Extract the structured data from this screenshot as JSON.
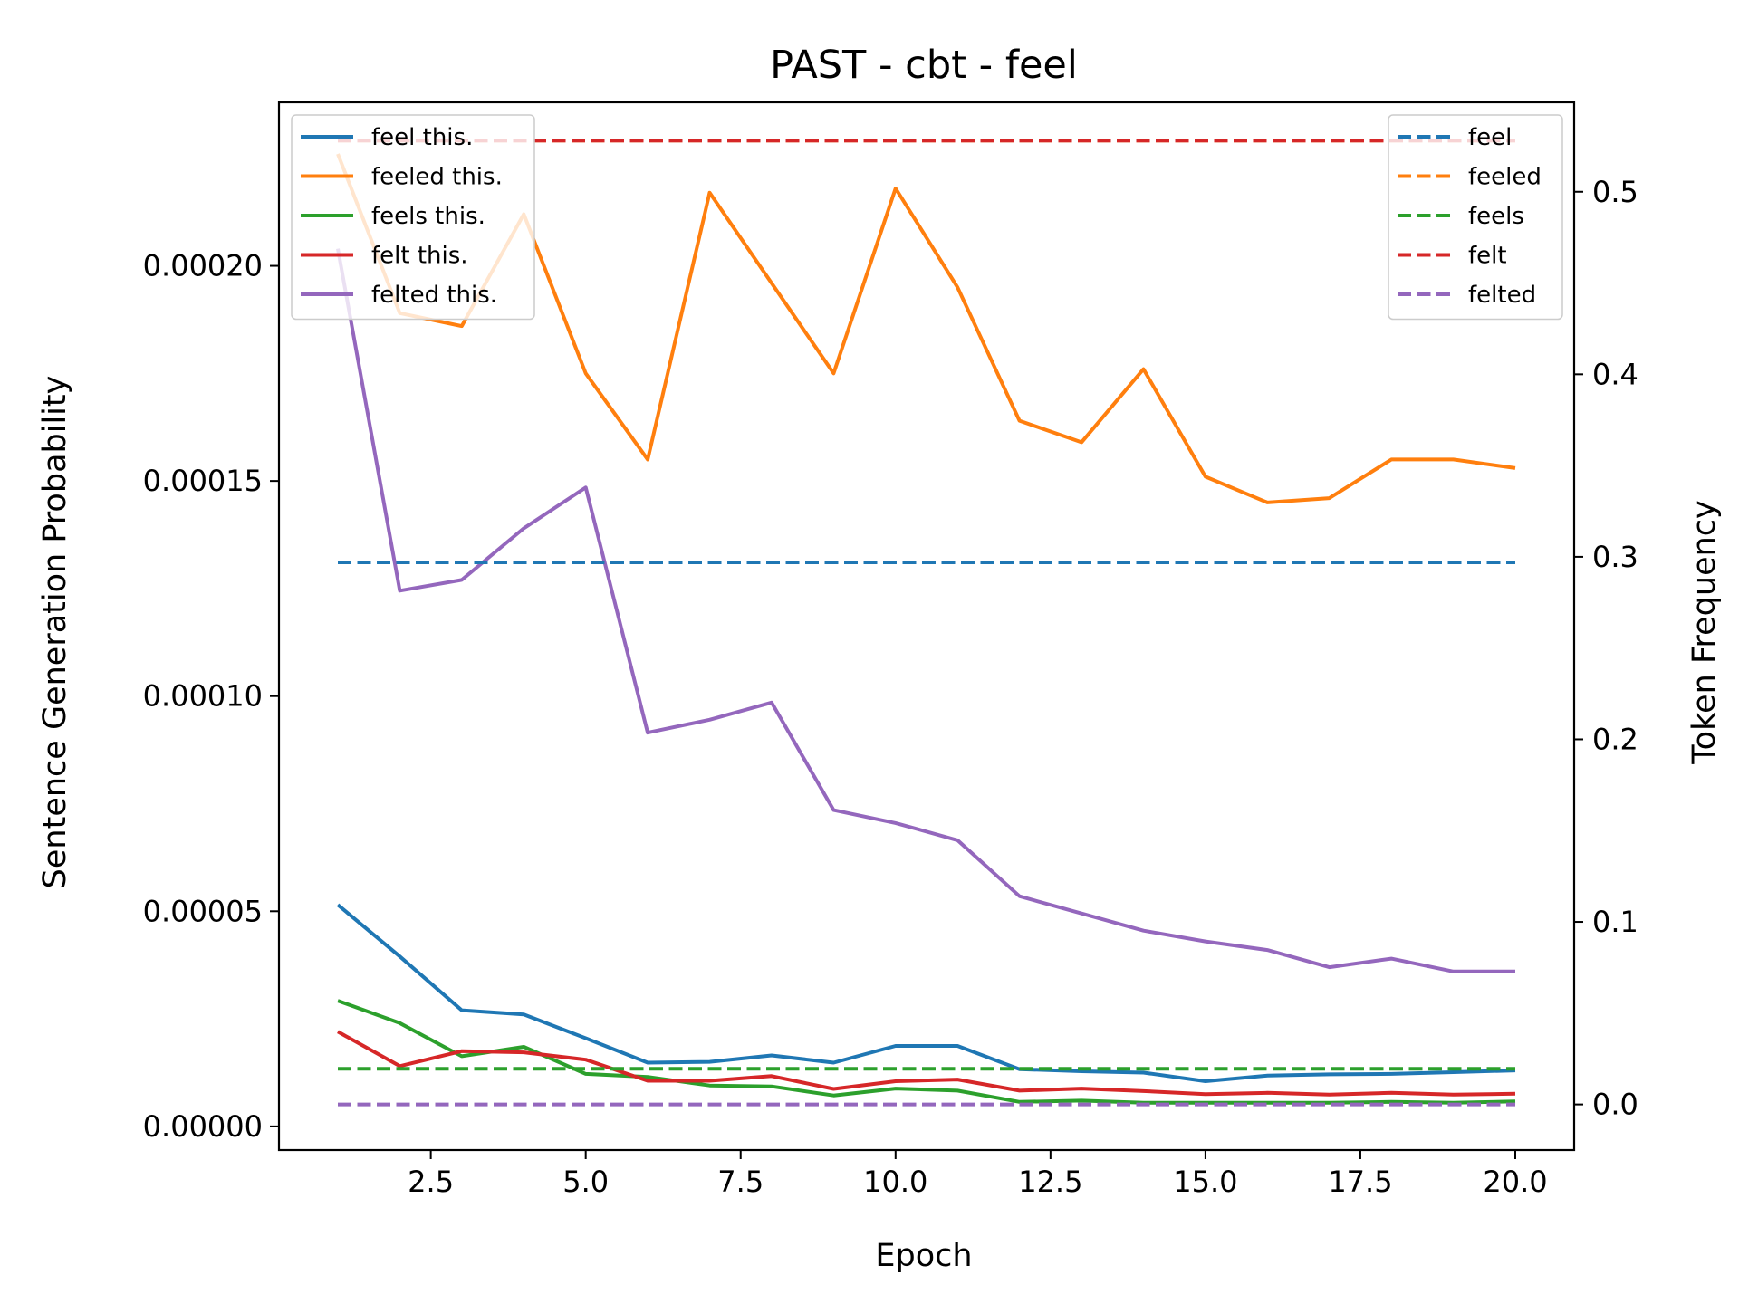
{
  "chart_data": {
    "type": "line",
    "title": "PAST - cbt - feel",
    "xlabel": "Epoch",
    "ylabel": "Sentence Generation Probability",
    "y2label": "Token Frequency",
    "xlim": [
      0.05,
      20.95
    ],
    "ylim": [
      -5.5e-06,
      0.000238
    ],
    "y2lim": [
      -0.025,
      0.549
    ],
    "x_ticks": [
      2.5,
      5.0,
      7.5,
      10.0,
      12.5,
      15.0,
      17.5,
      20.0
    ],
    "x_tick_labels": [
      "2.5",
      "5.0",
      "7.5",
      "10.0",
      "12.5",
      "15.0",
      "17.5",
      "20.0"
    ],
    "y_ticks": [
      0,
      5e-05,
      0.0001,
      0.00015,
      0.0002
    ],
    "y_tick_labels": [
      "0.00000",
      "0.00005",
      "0.00010",
      "0.00015",
      "0.00020"
    ],
    "y2_ticks": [
      0.0,
      0.1,
      0.2,
      0.3,
      0.4,
      0.5
    ],
    "y2_tick_labels": [
      "0.0",
      "0.1",
      "0.2",
      "0.3",
      "0.4",
      "0.5"
    ],
    "x": [
      1,
      2,
      3,
      4,
      5,
      6,
      7,
      8,
      9,
      10,
      11,
      12,
      13,
      14,
      15,
      16,
      17,
      18,
      19,
      20
    ],
    "series": [
      {
        "name": "feel this.",
        "axis": "left",
        "color": "#1f77b4",
        "style": "solid",
        "values": [
          5.15e-05,
          3.95e-05,
          2.7e-05,
          2.6e-05,
          2.05e-05,
          1.48e-05,
          1.5e-05,
          1.65e-05,
          1.48e-05,
          1.87e-05,
          1.87e-05,
          1.33e-05,
          1.28e-05,
          1.25e-05,
          1.05e-05,
          1.18e-05,
          1.21e-05,
          1.22e-05,
          1.26e-05,
          1.3e-05
        ]
      },
      {
        "name": "feeled this.",
        "axis": "left",
        "color": "#ff7f0e",
        "style": "solid",
        "values": [
          0.000226,
          0.000189,
          0.000186,
          0.000212,
          0.000175,
          0.000155,
          0.000217,
          0.000196,
          0.000175,
          0.000218,
          0.000195,
          0.000164,
          0.000159,
          0.000176,
          0.000151,
          0.000145,
          0.000146,
          0.000155,
          0.000155,
          0.000153
        ]
      },
      {
        "name": "feels this.",
        "axis": "left",
        "color": "#2ca02c",
        "style": "solid",
        "values": [
          2.92e-05,
          2.4e-05,
          1.63e-05,
          1.85e-05,
          1.22e-05,
          1.15e-05,
          9.5e-06,
          9.3e-06,
          7.2e-06,
          8.8e-06,
          8.3e-06,
          5.7e-06,
          6e-06,
          5.5e-06,
          5.5e-06,
          5.5e-06,
          5.5e-06,
          5.7e-06,
          5.5e-06,
          5.8e-06
        ]
      },
      {
        "name": "felt this.",
        "axis": "left",
        "color": "#d62728",
        "style": "solid",
        "values": [
          2.2e-05,
          1.4e-05,
          1.75e-05,
          1.72e-05,
          1.55e-05,
          1.06e-05,
          1.06e-05,
          1.17e-05,
          8.7e-06,
          1.05e-05,
          1.09e-05,
          8.3e-06,
          8.8e-06,
          8.2e-06,
          7.5e-06,
          7.8e-06,
          7.4e-06,
          7.8e-06,
          7.4e-06,
          7.6e-06
        ]
      },
      {
        "name": "felted this.",
        "axis": "left",
        "color": "#9467bd",
        "style": "solid",
        "values": [
          0.000204,
          0.0001245,
          0.000127,
          0.000139,
          0.0001485,
          9.15e-05,
          9.45e-05,
          9.85e-05,
          7.35e-05,
          7.05e-05,
          6.65e-05,
          5.35e-05,
          4.95e-05,
          4.55e-05,
          4.3e-05,
          4.1e-05,
          3.7e-05,
          3.9e-05,
          3.6e-05,
          3.6e-05
        ]
      },
      {
        "name": "feel",
        "axis": "right",
        "color": "#1f77b4",
        "style": "dashed",
        "values": [
          0.297,
          0.297,
          0.297,
          0.297,
          0.297,
          0.297,
          0.297,
          0.297,
          0.297,
          0.297,
          0.297,
          0.297,
          0.297,
          0.297,
          0.297,
          0.297,
          0.297,
          0.297,
          0.297,
          0.297
        ]
      },
      {
        "name": "feeled",
        "axis": "right",
        "color": "#ff7f0e",
        "style": "dashed",
        "values": [
          0.528,
          0.528,
          0.528,
          0.528,
          0.528,
          0.528,
          0.528,
          0.528,
          0.528,
          0.528,
          0.528,
          0.528,
          0.528,
          0.528,
          0.528,
          0.528,
          0.528,
          0.528,
          0.528,
          0.528
        ]
      },
      {
        "name": "feels",
        "axis": "right",
        "color": "#2ca02c",
        "style": "dashed",
        "values": [
          0.0195,
          0.0195,
          0.0195,
          0.0195,
          0.0195,
          0.0195,
          0.0195,
          0.0195,
          0.0195,
          0.0195,
          0.0195,
          0.0195,
          0.0195,
          0.0195,
          0.0195,
          0.0195,
          0.0195,
          0.0195,
          0.0195,
          0.0195
        ]
      },
      {
        "name": "felt",
        "axis": "right",
        "color": "#d62728",
        "style": "dashed",
        "values": [
          0.528,
          0.528,
          0.528,
          0.528,
          0.528,
          0.528,
          0.528,
          0.528,
          0.528,
          0.528,
          0.528,
          0.528,
          0.528,
          0.528,
          0.528,
          0.528,
          0.528,
          0.528,
          0.528,
          0.528
        ]
      },
      {
        "name": "felted",
        "axis": "right",
        "color": "#9467bd",
        "style": "dashed",
        "values": [
          0.0,
          0.0,
          0.0,
          0.0,
          0.0,
          0.0,
          0.0,
          0.0,
          0.0,
          0.0,
          0.0,
          0.0,
          0.0,
          0.0,
          0.0,
          0.0,
          0.0,
          0.0,
          0.0,
          0.0
        ]
      }
    ],
    "legends": [
      {
        "placement": "upper-left",
        "entries": [
          "feel this.",
          "feeled this.",
          "feels this.",
          "felt this.",
          "felted this."
        ]
      },
      {
        "placement": "upper-right",
        "entries": [
          "feel",
          "feeled",
          "feels",
          "felt",
          "felted"
        ]
      }
    ],
    "grid": false
  }
}
